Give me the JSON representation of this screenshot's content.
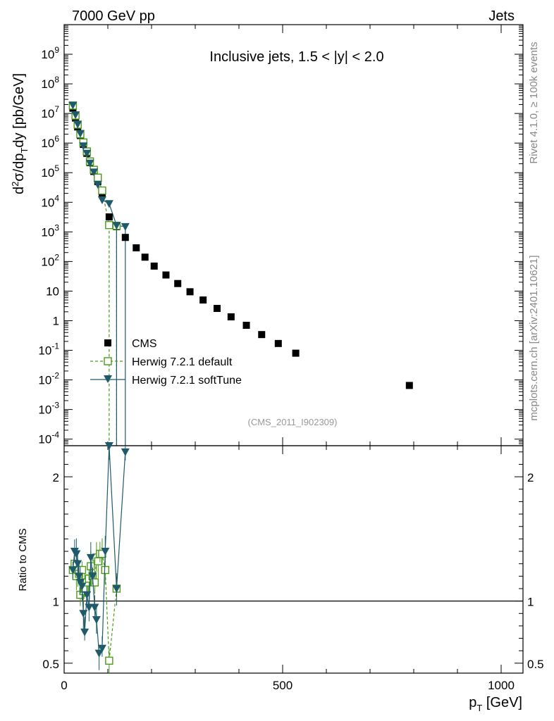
{
  "header": {
    "left": "7000 GeV pp",
    "right": "Jets"
  },
  "side_labels": {
    "rivet": "Rivet 4.1.0, ≥ 100k events",
    "mcplots": "mcplots.cern.ch [arXiv:2401.10621]"
  },
  "chart_data": [
    {
      "type": "scatter",
      "panel": "main",
      "title": "Inclusive jets, 1.5 < |y| < 2.0",
      "analysis_label": "(CMS_2011_I902309)",
      "ylabel_parts": {
        "d": "d",
        "sq": "2",
        "sigma": "σ/dp",
        "T": "T",
        "rest": "dy [pb/GeV]"
      },
      "ylog": true,
      "xlim": [
        0,
        1050
      ],
      "ylim": [
        6e-05,
        10000000000.0
      ],
      "ytick_labels": [
        {
          "value": 0.0001,
          "base": "10",
          "exp": "-4"
        },
        {
          "value": 0.001,
          "base": "10",
          "exp": "-3"
        },
        {
          "value": 0.01,
          "base": "10",
          "exp": "-2"
        },
        {
          "value": 0.1,
          "base": "10",
          "exp": "-1"
        },
        {
          "value": 1,
          "base": "1",
          "exp": ""
        },
        {
          "value": 10,
          "base": "10",
          "exp": ""
        },
        {
          "value": 100,
          "base": "10",
          "exp": "2"
        },
        {
          "value": 1000,
          "base": "10",
          "exp": "3"
        },
        {
          "value": 10000.0,
          "base": "10",
          "exp": "4"
        },
        {
          "value": 100000.0,
          "base": "10",
          "exp": "5"
        },
        {
          "value": 1000000.0,
          "base": "10",
          "exp": "6"
        },
        {
          "value": 10000000.0,
          "base": "10",
          "exp": "7"
        },
        {
          "value": 100000000.0,
          "base": "10",
          "exp": "8"
        },
        {
          "value": 1000000000.0,
          "base": "10",
          "exp": "9"
        }
      ],
      "legend_position": "lower-left",
      "series": [
        {
          "name": "CMS",
          "marker": "square-filled",
          "color": "#000000",
          "x": [
            20,
            26,
            31,
            37,
            44,
            52,
            59,
            68,
            77,
            87,
            103,
            120,
            140,
            165,
            185,
            206,
            233,
            260,
            288,
            318,
            350,
            382,
            417,
            452,
            490,
            530,
            790
          ],
          "y": [
            15000000.0,
            7000000.0,
            3500000.0,
            1800000.0,
            900000.0,
            450000.0,
            220000.0,
            110000.0,
            50000.0,
            20000.0,
            3200,
            1500,
            650,
            290,
            140,
            70,
            35,
            18,
            9.5,
            5,
            2.6,
            1.35,
            0.7,
            0.34,
            0.17,
            0.08,
            0.0065
          ]
        },
        {
          "name": "Herwig 7.2.1 default",
          "marker": "square-open",
          "line": "dashed",
          "color": "#4a9a1a",
          "x": [
            20,
            26,
            31,
            37,
            44,
            52,
            59,
            68,
            77,
            87,
            103,
            120
          ],
          "y": [
            18500000.0,
            8500000.0,
            4200000.0,
            2000000.0,
            1050000.0,
            520000.0,
            240000.0,
            125000.0,
            68000.0,
            25000.0,
            1700,
            1600
          ]
        },
        {
          "name": "Herwig 7.2.1 softTune",
          "marker": "triangle-down-filled",
          "line": "solid",
          "color": "#1e5a6a",
          "x": [
            20,
            26,
            31,
            37,
            44,
            52,
            59,
            68,
            77,
            87,
            103,
            120,
            140
          ],
          "y": [
            19000000.0,
            9000000.0,
            4300000.0,
            2100000.0,
            800000.0,
            450000.0,
            210000.0,
            105000.0,
            40000.0,
            12000.0,
            9000,
            1650,
            1500
          ]
        }
      ]
    },
    {
      "type": "scatter",
      "panel": "ratio",
      "ylabel": "Ratio to CMS",
      "xlabel_parts": {
        "p": "p",
        "T": "T",
        "rest": " [GeV]"
      },
      "xlim": [
        0,
        1050
      ],
      "ylim": [
        0.42,
        2.25
      ],
      "xtick_labels": [
        {
          "value": 0,
          "label": "0"
        },
        {
          "value": 500,
          "label": "500"
        },
        {
          "value": 1000,
          "label": "1000"
        }
      ],
      "ytick_labels": [
        {
          "value": 0.5,
          "label": "0.5"
        },
        {
          "value": 1,
          "label": "1"
        },
        {
          "value": 2,
          "label": "2"
        }
      ],
      "reference_line": 1,
      "series": [
        {
          "name": "Herwig 7.2.1 default",
          "marker": "square-open",
          "line": "dashed",
          "color": "#4a9a1a",
          "x": [
            20,
            24,
            28,
            31,
            34,
            37,
            41,
            44,
            47,
            52,
            57,
            61,
            65,
            70,
            74,
            78,
            82,
            87,
            94,
            103,
            120
          ],
          "y": [
            1.25,
            1.3,
            1.2,
            1.25,
            1.22,
            1.05,
            1.25,
            1.08,
            1.1,
            1.15,
            1.18,
            1.28,
            1.2,
            1.15,
            1.35,
            1.32,
            1.38,
            1.38,
            1.25,
            0.52,
            1.1
          ]
        },
        {
          "name": "Herwig 7.2.1 softTune",
          "marker": "triangle-down-filled",
          "line": "solid",
          "color": "#1e5a6a",
          "x": [
            20,
            24,
            28,
            31,
            34,
            37,
            41,
            44,
            47,
            52,
            57,
            61,
            65,
            70,
            74,
            80,
            87,
            94,
            103,
            120,
            140
          ],
          "y": [
            1.25,
            1.4,
            1.38,
            1.3,
            1.2,
            1.15,
            1.12,
            0.9,
            0.75,
            1.05,
            0.95,
            1.35,
            1.2,
            0.95,
            0.85,
            0.58,
            0.62,
            1.4,
            2.25,
            1.1,
            2.2
          ]
        }
      ]
    }
  ]
}
